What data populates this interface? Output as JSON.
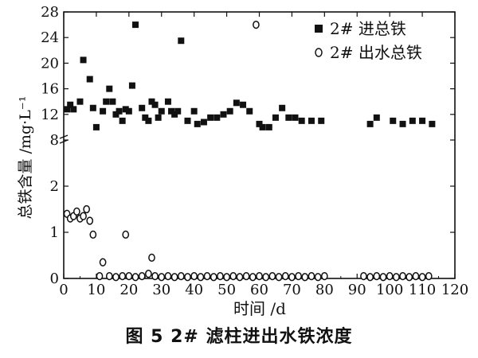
{
  "figure": {
    "caption": "图 5    2# 滤柱进出水铁浓度"
  },
  "chart_data": {
    "type": "scatter",
    "xlabel": "时间 /d",
    "ylabel": "总铁含量 /mg·L⁻¹",
    "xlim": [
      0,
      120
    ],
    "x_ticks": [
      "0",
      "10",
      "20",
      "30",
      "40",
      "50",
      "60",
      "70",
      "80",
      "90",
      "100",
      "110",
      "120"
    ],
    "y_axis_break": "8",
    "y_lower": {
      "range": [
        0,
        3
      ],
      "ticks": [
        "0",
        "1",
        "2"
      ]
    },
    "y_upper": {
      "range": [
        8,
        28
      ],
      "ticks": [
        "8",
        "12",
        "16",
        "20",
        "24",
        "28"
      ]
    },
    "grid": false,
    "legend_position": "top-right",
    "series": [
      {
        "name": "2# 进总铁",
        "marker": "filled-square",
        "color": "#111111",
        "points": [
          [
            1,
            12.8
          ],
          [
            2,
            13.5
          ],
          [
            3,
            12.8
          ],
          [
            5,
            14
          ],
          [
            6,
            20.5
          ],
          [
            8,
            17.5
          ],
          [
            9,
            13
          ],
          [
            10,
            10
          ],
          [
            12,
            12.5
          ],
          [
            13,
            14
          ],
          [
            14,
            16
          ],
          [
            15,
            14
          ],
          [
            16,
            12
          ],
          [
            17,
            12.5
          ],
          [
            18,
            11
          ],
          [
            19,
            12.8
          ],
          [
            20,
            12.5
          ],
          [
            21,
            16.5
          ],
          [
            22,
            26
          ],
          [
            24,
            13
          ],
          [
            25,
            11.5
          ],
          [
            26,
            11
          ],
          [
            27,
            14
          ],
          [
            28,
            13.5
          ],
          [
            29,
            11.5
          ],
          [
            30,
            12.5
          ],
          [
            32,
            14
          ],
          [
            33,
            12.5
          ],
          [
            34,
            12
          ],
          [
            35,
            12.5
          ],
          [
            36,
            23.5
          ],
          [
            38,
            11
          ],
          [
            40,
            12.5
          ],
          [
            41,
            10.5
          ],
          [
            43,
            10.8
          ],
          [
            45,
            11.5
          ],
          [
            47,
            11.5
          ],
          [
            49,
            12
          ],
          [
            51,
            12.5
          ],
          [
            53,
            13.8
          ],
          [
            55,
            13.5
          ],
          [
            57,
            12.5
          ],
          [
            60,
            10.5
          ],
          [
            61,
            10
          ],
          [
            63,
            10
          ],
          [
            65,
            11.5
          ],
          [
            67,
            13
          ],
          [
            69,
            11.5
          ],
          [
            71,
            11.5
          ],
          [
            73,
            11
          ],
          [
            76,
            11
          ],
          [
            79,
            11
          ],
          [
            94,
            10.5
          ],
          [
            96,
            11.5
          ],
          [
            101,
            11
          ],
          [
            104,
            10.5
          ],
          [
            107,
            11
          ],
          [
            110,
            11
          ],
          [
            113,
            10.5
          ]
        ]
      },
      {
        "name": "2# 出水总铁",
        "marker": "open-circle",
        "color": "#111111",
        "points": [
          [
            1,
            1.4
          ],
          [
            2,
            1.3
          ],
          [
            3,
            1.35
          ],
          [
            4,
            1.45
          ],
          [
            5,
            1.3
          ],
          [
            6,
            1.35
          ],
          [
            7,
            1.5
          ],
          [
            8,
            1.25
          ],
          [
            9,
            0.95
          ],
          [
            11,
            0.05
          ],
          [
            12,
            0.35
          ],
          [
            14,
            0.05
          ],
          [
            16,
            0.03
          ],
          [
            18,
            0.05
          ],
          [
            19,
            0.95
          ],
          [
            20,
            0.05
          ],
          [
            22,
            0.03
          ],
          [
            24,
            0.05
          ],
          [
            26,
            0.1
          ],
          [
            27,
            0.45
          ],
          [
            28,
            0.05
          ],
          [
            30,
            0.03
          ],
          [
            32,
            0.05
          ],
          [
            34,
            0.03
          ],
          [
            36,
            0.05
          ],
          [
            38,
            0.03
          ],
          [
            40,
            0.05
          ],
          [
            42,
            0.03
          ],
          [
            44,
            0.05
          ],
          [
            46,
            0.03
          ],
          [
            48,
            0.05
          ],
          [
            50,
            0.03
          ],
          [
            52,
            0.05
          ],
          [
            54,
            0.03
          ],
          [
            56,
            0.05
          ],
          [
            58,
            0.03
          ],
          [
            59,
            26
          ],
          [
            60,
            0.05
          ],
          [
            62,
            0.03
          ],
          [
            64,
            0.05
          ],
          [
            66,
            0.03
          ],
          [
            68,
            0.05
          ],
          [
            70,
            0.03
          ],
          [
            72,
            0.05
          ],
          [
            74,
            0.03
          ],
          [
            76,
            0.05
          ],
          [
            78,
            0.03
          ],
          [
            80,
            0.05
          ],
          [
            92,
            0.05
          ],
          [
            94,
            0.03
          ],
          [
            96,
            0.05
          ],
          [
            98,
            0.03
          ],
          [
            100,
            0.05
          ],
          [
            102,
            0.03
          ],
          [
            104,
            0.05
          ],
          [
            106,
            0.03
          ],
          [
            108,
            0.05
          ],
          [
            110,
            0.03
          ],
          [
            112,
            0.05
          ]
        ]
      }
    ]
  }
}
